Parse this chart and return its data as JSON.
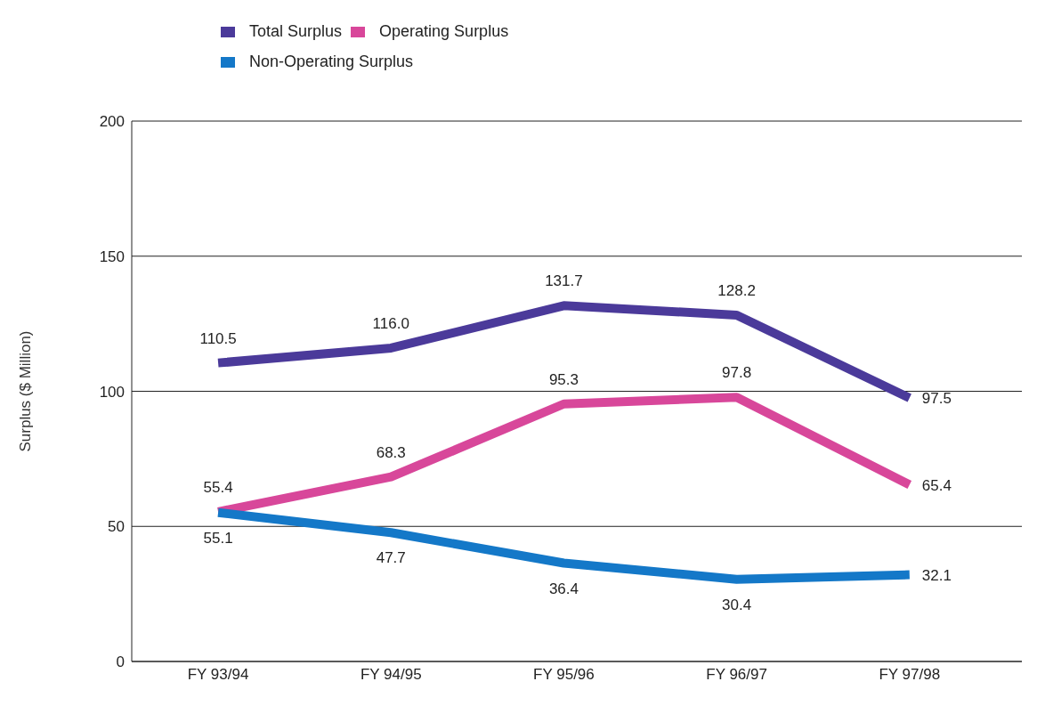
{
  "chart_data": {
    "type": "line",
    "ylabel": "Surplus ($ Million)",
    "categories": [
      "FY 93/94",
      "FY 94/95",
      "FY 95/96",
      "FY 96/97",
      "FY 97/98"
    ],
    "series": [
      {
        "name": "Total Surplus",
        "color": "#4b3a9a",
        "values": [
          110.5,
          116.0,
          131.7,
          128.2,
          97.5
        ],
        "value_labels": [
          "110.5",
          "116.0",
          "131.7",
          "128.2",
          "97.5"
        ]
      },
      {
        "name": "Operating Surplus",
        "color": "#d8479a",
        "values": [
          55.4,
          68.3,
          95.3,
          97.8,
          65.4
        ],
        "value_labels": [
          "55.4",
          "68.3",
          "95.3",
          "97.8",
          "65.4"
        ]
      },
      {
        "name": "Non-Operating Surplus",
        "color": "#1478c8",
        "values": [
          55.1,
          47.7,
          36.4,
          30.4,
          32.1
        ],
        "value_labels": [
          "55.1",
          "47.7",
          "36.4",
          "30.4",
          "32.1"
        ]
      }
    ],
    "ylim": [
      0,
      200
    ],
    "yticks": [
      0,
      50,
      100,
      150,
      200
    ],
    "grid": "y",
    "legend": "top left",
    "marker": "none",
    "line_style": "solid"
  }
}
